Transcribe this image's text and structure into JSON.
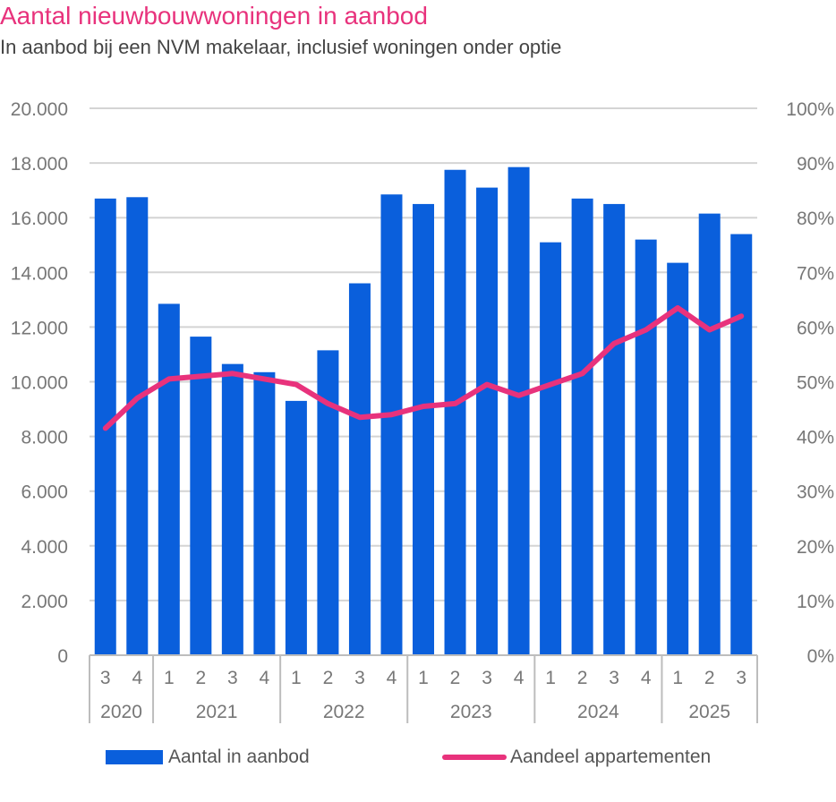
{
  "chart_data": {
    "type": "bar+line",
    "title": "Aantal nieuwbouwwoningen in aanbod",
    "subtitle": "In aanbod bij een NVM makelaar, inclusief woningen onder optie",
    "quarters": [
      "3",
      "4",
      "1",
      "2",
      "3",
      "4",
      "1",
      "2",
      "3",
      "4",
      "1",
      "2",
      "3",
      "4",
      "1",
      "2",
      "3",
      "4",
      "1",
      "2",
      "3"
    ],
    "years": [
      {
        "label": "2020",
        "count": 2
      },
      {
        "label": "2021",
        "count": 4
      },
      {
        "label": "2022",
        "count": 4
      },
      {
        "label": "2023",
        "count": 4
      },
      {
        "label": "2024",
        "count": 4
      },
      {
        "label": "2025",
        "count": 3
      }
    ],
    "series": [
      {
        "name": "Aantal in aanbod",
        "type": "bar",
        "axis": "left",
        "color": "#0a5fdc",
        "values": [
          16700,
          16750,
          12850,
          11650,
          10650,
          10350,
          9300,
          11150,
          13600,
          16850,
          16500,
          17750,
          17100,
          17850,
          15100,
          16700,
          16500,
          15200,
          14350,
          16150,
          15400
        ]
      },
      {
        "name": "Aandeel appartementen",
        "type": "line",
        "axis": "right",
        "color": "#e8327c",
        "values": [
          41.5,
          47,
          50.5,
          51,
          51.5,
          50.5,
          49.5,
          46,
          43.5,
          44,
          45.5,
          46,
          49.5,
          47.5,
          49.5,
          51.5,
          57,
          59.5,
          63.5,
          59.5,
          62
        ]
      }
    ],
    "left_axis": {
      "ylim": [
        0,
        20000
      ],
      "ticks": [
        "0",
        "2.000",
        "4.000",
        "6.000",
        "8.000",
        "10.000",
        "12.000",
        "14.000",
        "16.000",
        "18.000",
        "20.000"
      ]
    },
    "right_axis": {
      "ylim": [
        0,
        100
      ],
      "ticks": [
        "0%",
        "10%",
        "20%",
        "30%",
        "40%",
        "50%",
        "60%",
        "70%",
        "80%",
        "90%",
        "100%"
      ]
    },
    "grid": true,
    "legend_position": "bottom"
  },
  "colors": {
    "title": "#e8327c",
    "bar": "#0a5fdc",
    "line": "#e8327c",
    "grid": "#d4d4d4",
    "tick": "#777777"
  }
}
